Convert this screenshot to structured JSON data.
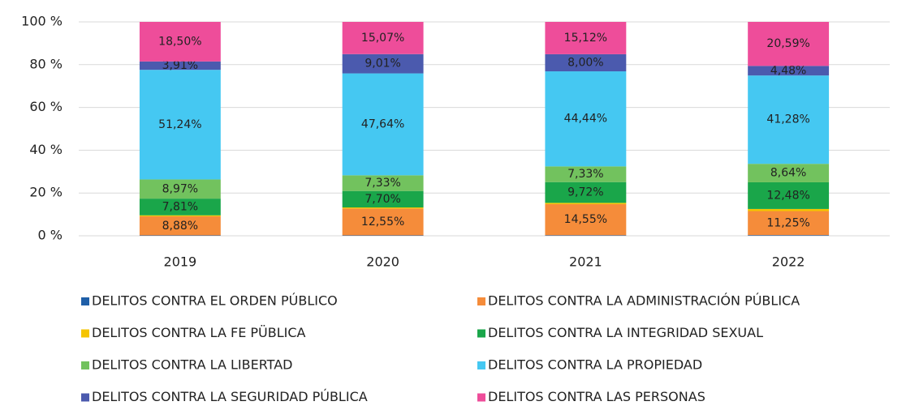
{
  "chart_data": {
    "type": "stacked_bar",
    "categories": [
      "2019",
      "2020",
      "2021",
      "2022"
    ],
    "series": [
      {
        "name": "DELITOS CONTRA EL ORDEN PÚBLICO",
        "color": "#1f5fa8",
        "values": [
          0.2,
          0.2,
          0.24,
          0.3
        ]
      },
      {
        "name": "DELITOS CONTRA LA ADMINISTRACIÓN PÚBLICA",
        "color": "#f58c3a",
        "values": [
          8.88,
          12.55,
          14.55,
          11.25
        ],
        "value_labels": [
          "8,88%",
          "12,55%",
          "14,55%",
          "11,25%"
        ]
      },
      {
        "name": "DELITOS CONTRA LA FE PÜBLICA",
        "color": "#f5c400",
        "values": [
          0.49,
          0.5,
          0.6,
          0.98
        ]
      },
      {
        "name": "DELITOS CONTRA LA INTEGRIDAD SEXUAL",
        "color": "#1aa64a",
        "values": [
          7.81,
          7.7,
          9.72,
          12.48
        ],
        "value_labels": [
          "7,81%",
          "7,70%",
          "9,72%",
          "12,48%"
        ]
      },
      {
        "name": "DELITOS CONTRA LA LIBERTAD",
        "color": "#72c25e",
        "values": [
          8.97,
          7.33,
          7.33,
          8.64
        ],
        "value_labels": [
          "8,97%",
          "7,33%",
          "7,33%",
          "8,64%"
        ]
      },
      {
        "name": "DELITOS CONTRA LA PROPIEDAD",
        "color": "#45c8f2",
        "values": [
          51.24,
          47.64,
          44.44,
          41.28
        ],
        "value_labels": [
          "51,24%",
          "47,64%",
          "44,44%",
          "41,28%"
        ]
      },
      {
        "name": "DELITOS CONTRA LA SEGURIDAD PÚBLICA",
        "color": "#4b5aae",
        "values": [
          3.91,
          9.01,
          8.0,
          4.48
        ],
        "value_labels": [
          "3,91%",
          "9,01%",
          "8,00%",
          "4,48%"
        ]
      },
      {
        "name": "DELITOS CONTRA LAS PERSONAS",
        "color": "#ee4d9a",
        "values": [
          18.5,
          15.07,
          15.12,
          20.59
        ],
        "value_labels": [
          "18,50%",
          "15,07%",
          "15,12%",
          "20,59%"
        ]
      }
    ],
    "ylim": [
      0,
      100
    ],
    "yticks": [
      {
        "value": 0,
        "label": "0 %"
      },
      {
        "value": 20,
        "label": "20 %"
      },
      {
        "value": 40,
        "label": "40 %"
      },
      {
        "value": 60,
        "label": "60 %"
      },
      {
        "value": 80,
        "label": "80 %"
      },
      {
        "value": 100,
        "label": "100 %"
      }
    ],
    "grid": true
  }
}
